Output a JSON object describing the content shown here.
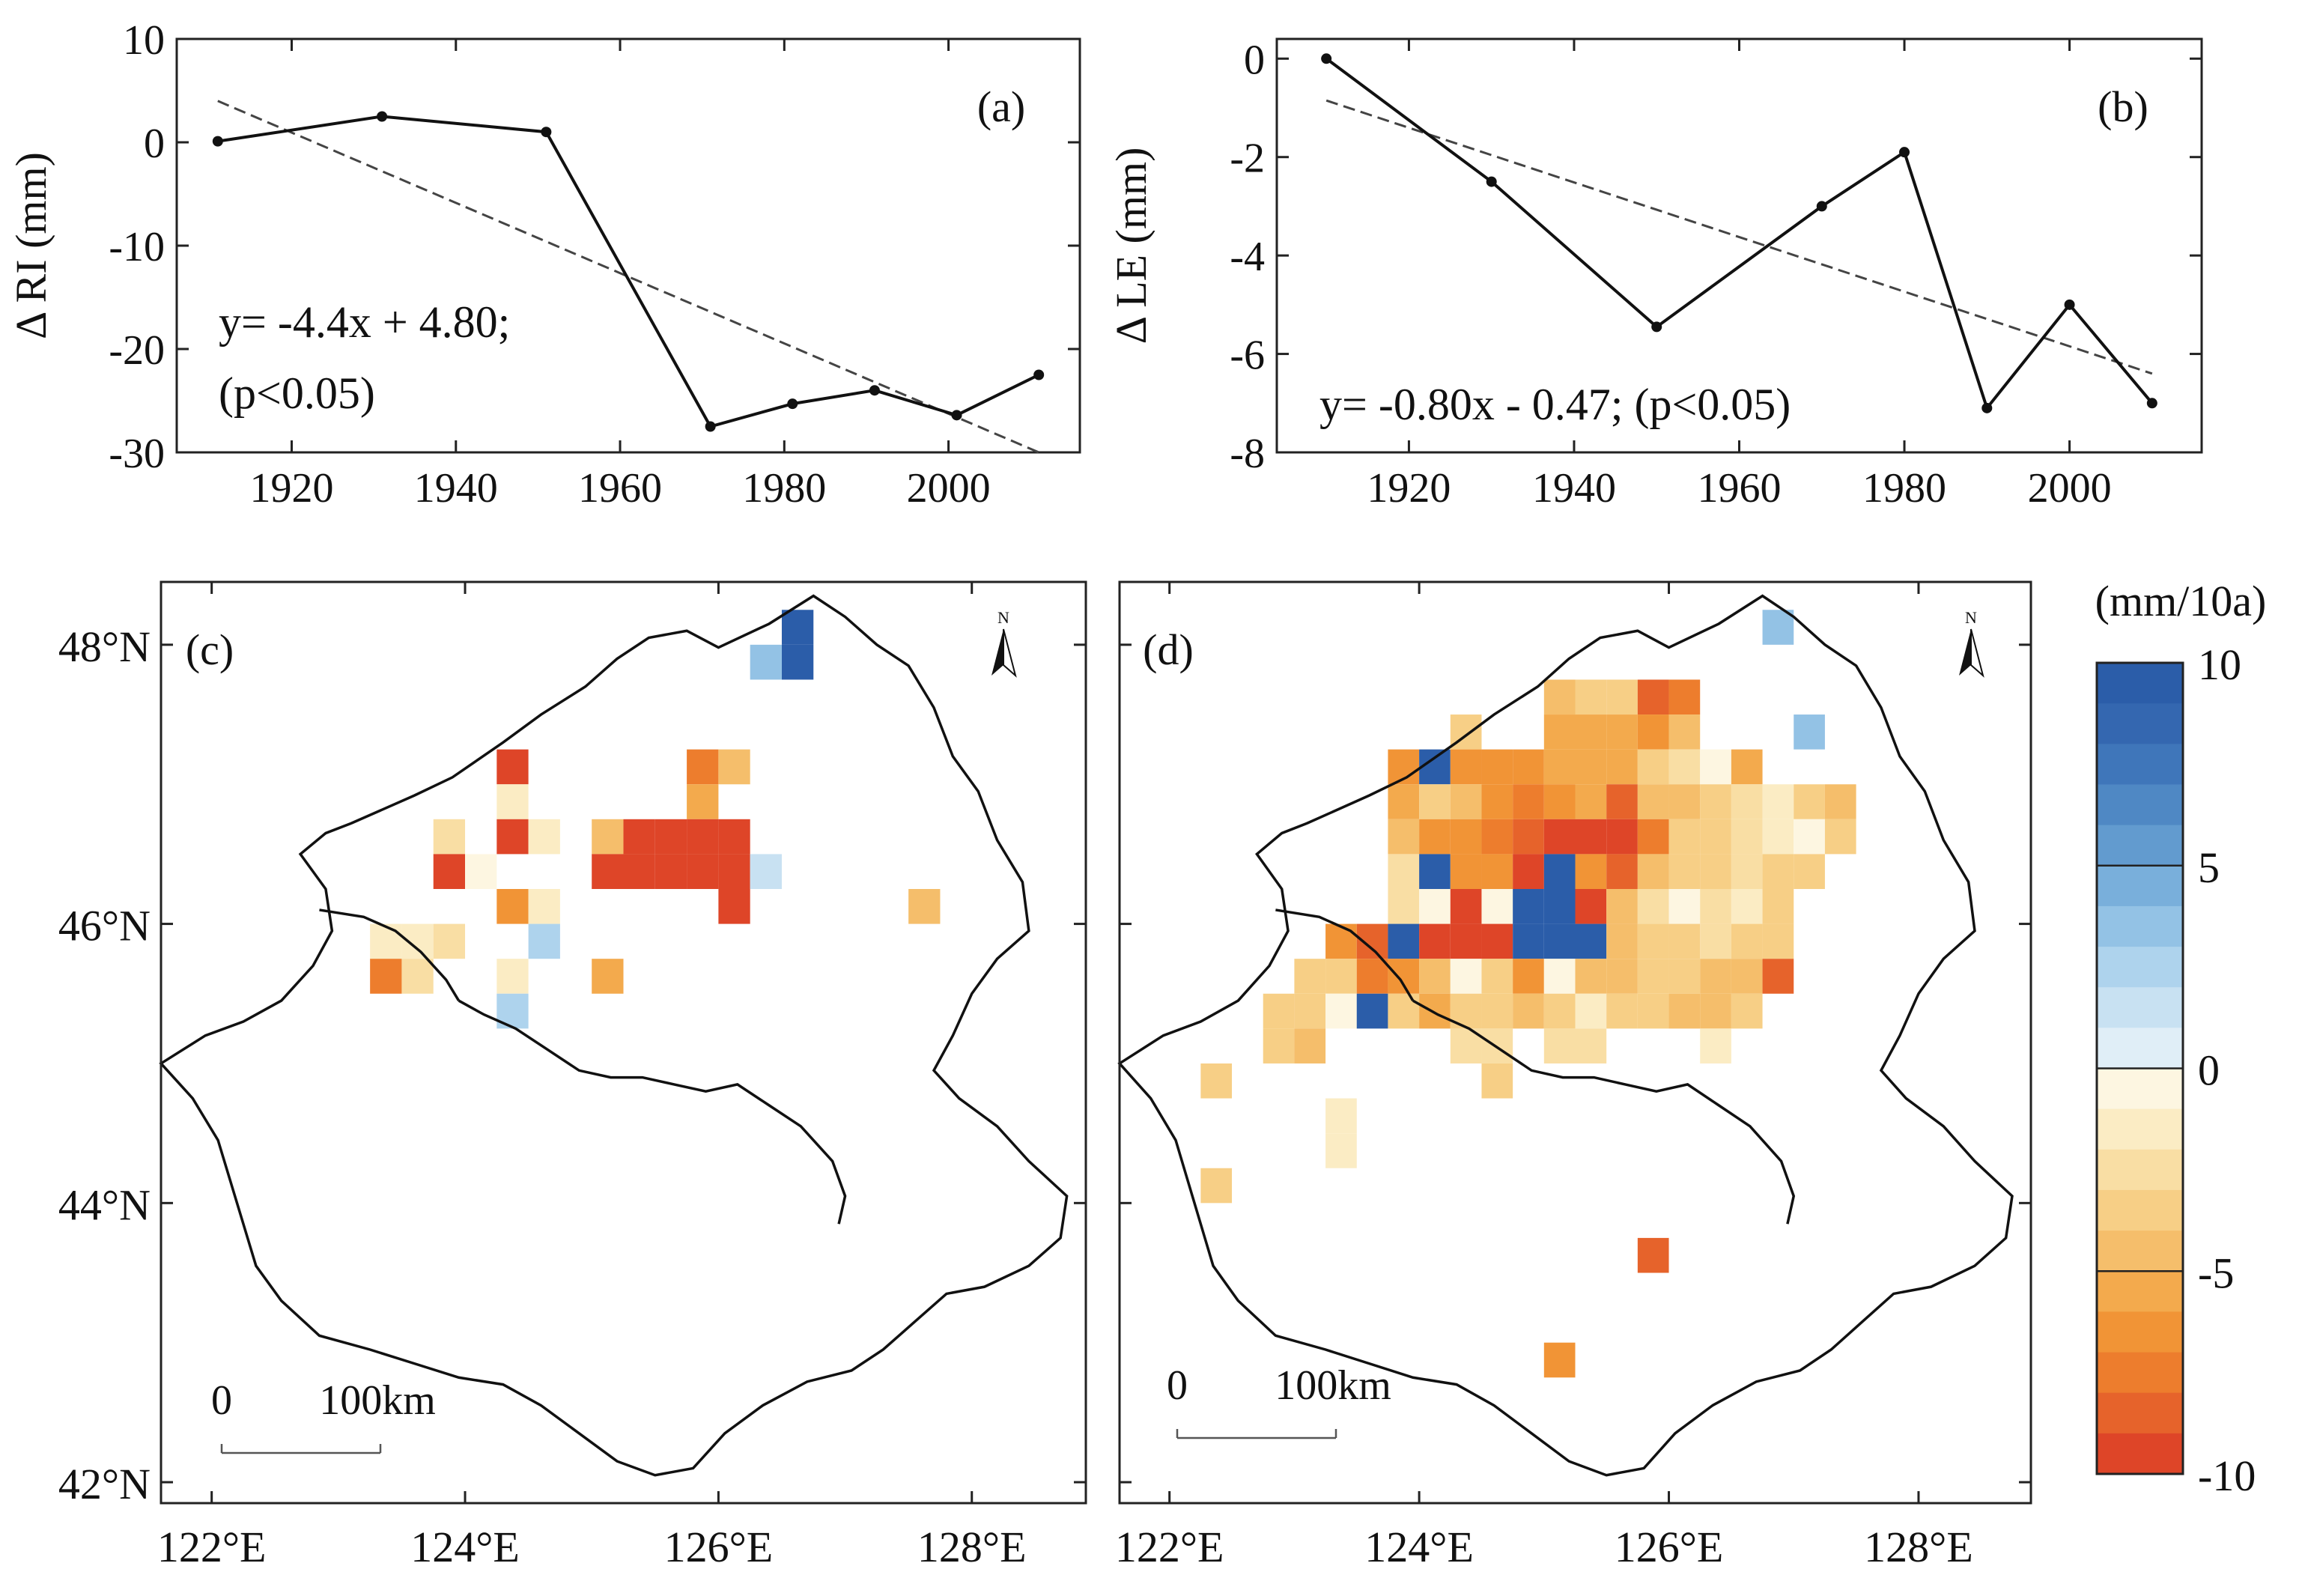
{
  "chart_data": [
    {
      "panel": "(a)",
      "type": "line",
      "ylabel": "Δ RI (mm)",
      "xticks": [
        1920,
        1940,
        1960,
        1980,
        2000
      ],
      "yticks": [
        10,
        0,
        -10,
        -20,
        -30
      ],
      "xlim": [
        1906,
        2016
      ],
      "ylim": [
        -30,
        10
      ],
      "series": [
        {
          "x": [
            1911,
            1931,
            1951,
            1971,
            1981,
            1991,
            2001,
            2011
          ],
          "y": [
            0.1,
            2.5,
            1.0,
            -27.5,
            -25.3,
            -24.0,
            -26.4,
            -22.5
          ]
        }
      ],
      "trend": {
        "x": [
          1911,
          2011
        ],
        "y": [
          4.0,
          -30.0
        ]
      },
      "annotation": [
        "y= -4.4x + 4.80;",
        "(p<0.05)"
      ]
    },
    {
      "panel": "(b)",
      "type": "line",
      "ylabel": "Δ LE (mm)",
      "xticks": [
        1920,
        1940,
        1960,
        1980,
        2000
      ],
      "yticks": [
        0,
        -2,
        -4,
        -6,
        -8
      ],
      "xlim": [
        1904,
        2016
      ],
      "ylim": [
        -8,
        0.4
      ],
      "series": [
        {
          "x": [
            1910,
            1930,
            1950,
            1970,
            1980,
            1990,
            2000,
            2010
          ],
          "y": [
            0,
            -2.5,
            -5.45,
            -3.0,
            -1.9,
            -7.1,
            -5.0,
            -7.0
          ]
        }
      ],
      "trend": {
        "x": [
          1910,
          2010
        ],
        "y": [
          -0.85,
          -6.4
        ]
      },
      "annotation": [
        "y= -0.80x - 0.47; (p<0.05)"
      ]
    },
    {
      "panel": "(c)",
      "type": "heatmap",
      "xticks": [
        "122°E",
        "124°E",
        "126°E",
        "128°E"
      ],
      "yticks": [
        "48°N",
        "46°N",
        "44°N",
        "42°N"
      ],
      "lon_range": [
        121.6,
        128.9
      ],
      "lat_range": [
        41.85,
        48.45
      ],
      "cell_deg": 0.25,
      "cells": [
        [
          126.625,
          48.125,
          9
        ],
        [
          126.625,
          47.875,
          10
        ],
        [
          126.375,
          47.875,
          3
        ],
        [
          124.375,
          47.125,
          -10
        ],
        [
          125.875,
          47.125,
          -7
        ],
        [
          126.125,
          47.125,
          -4
        ],
        [
          124.375,
          46.875,
          -1
        ],
        [
          125.875,
          46.875,
          -5
        ],
        [
          123.875,
          46.625,
          -2
        ],
        [
          124.375,
          46.625,
          -9
        ],
        [
          124.625,
          46.625,
          -1
        ],
        [
          125.125,
          46.625,
          -4.5
        ],
        [
          125.375,
          46.625,
          -9.5
        ],
        [
          125.625,
          46.625,
          -10
        ],
        [
          125.875,
          46.625,
          -10
        ],
        [
          126.125,
          46.625,
          -10
        ],
        [
          123.875,
          46.375,
          -10
        ],
        [
          124.125,
          46.375,
          -0.5
        ],
        [
          125.125,
          46.375,
          -10
        ],
        [
          125.375,
          46.375,
          -10
        ],
        [
          125.625,
          46.375,
          -10
        ],
        [
          125.875,
          46.375,
          -10
        ],
        [
          126.125,
          46.375,
          -10
        ],
        [
          126.375,
          46.375,
          1
        ],
        [
          124.375,
          46.125,
          -6
        ],
        [
          124.625,
          46.125,
          -1
        ],
        [
          126.125,
          46.125,
          -9
        ],
        [
          127.625,
          46.125,
          -4.5
        ],
        [
          123.375,
          45.875,
          -1.5
        ],
        [
          123.625,
          45.875,
          -1.5
        ],
        [
          123.875,
          45.875,
          -2.5
        ],
        [
          124.625,
          45.875,
          2
        ],
        [
          123.375,
          45.625,
          -7
        ],
        [
          123.625,
          45.625,
          -2
        ],
        [
          124.375,
          45.625,
          -1
        ],
        [
          125.125,
          45.625,
          -5
        ],
        [
          124.375,
          45.375,
          2
        ]
      ],
      "scalebar": [
        "0",
        "100km"
      ]
    },
    {
      "panel": "(d)",
      "type": "heatmap",
      "xticks": [
        "122°E",
        "124°E",
        "126°E",
        "128°E"
      ],
      "lon_range": [
        121.6,
        128.9
      ],
      "lat_range": [
        41.85,
        48.45
      ],
      "cell_deg": 0.25,
      "cells": [
        [
          126.875,
          48.125,
          3
        ],
        [
          125.125,
          47.625,
          -4
        ],
        [
          125.375,
          47.625,
          -3
        ],
        [
          125.625,
          47.625,
          -3
        ],
        [
          125.875,
          47.625,
          -8
        ],
        [
          126.125,
          47.625,
          -7
        ],
        [
          124.375,
          47.375,
          -3
        ],
        [
          125.125,
          47.375,
          -5
        ],
        [
          125.375,
          47.375,
          -5
        ],
        [
          125.625,
          47.375,
          -5
        ],
        [
          125.875,
          47.375,
          -6
        ],
        [
          126.125,
          47.375,
          -4
        ],
        [
          127.125,
          47.375,
          3
        ],
        [
          123.875,
          47.125,
          -6
        ],
        [
          124.125,
          47.125,
          10
        ],
        [
          124.375,
          47.125,
          -6
        ],
        [
          124.625,
          47.125,
          -6
        ],
        [
          124.875,
          47.125,
          -6
        ],
        [
          125.125,
          47.125,
          -5
        ],
        [
          125.375,
          47.125,
          -5
        ],
        [
          125.625,
          47.125,
          -5
        ],
        [
          125.875,
          47.125,
          -3
        ],
        [
          126.125,
          47.125,
          -2
        ],
        [
          126.375,
          47.125,
          -0.5
        ],
        [
          126.625,
          47.125,
          -5
        ],
        [
          123.875,
          46.875,
          -5
        ],
        [
          124.125,
          46.875,
          -3
        ],
        [
          124.375,
          46.875,
          -4
        ],
        [
          124.625,
          46.875,
          -6
        ],
        [
          124.875,
          46.875,
          -7
        ],
        [
          125.125,
          46.875,
          -6
        ],
        [
          125.375,
          46.875,
          -5
        ],
        [
          125.625,
          46.875,
          -8
        ],
        [
          125.875,
          46.875,
          -4
        ],
        [
          126.125,
          46.875,
          -4
        ],
        [
          126.375,
          46.875,
          -3
        ],
        [
          126.625,
          46.875,
          -2
        ],
        [
          126.875,
          46.875,
          -1
        ],
        [
          127.125,
          46.875,
          -3
        ],
        [
          127.375,
          46.875,
          -4
        ],
        [
          123.875,
          46.625,
          -4
        ],
        [
          124.125,
          46.625,
          -6
        ],
        [
          124.375,
          46.625,
          -6
        ],
        [
          124.625,
          46.625,
          -7
        ],
        [
          124.875,
          46.625,
          -8
        ],
        [
          125.125,
          46.625,
          -9
        ],
        [
          125.375,
          46.625,
          -9
        ],
        [
          125.625,
          46.625,
          -10
        ],
        [
          125.875,
          46.625,
          -7
        ],
        [
          126.125,
          46.625,
          -3
        ],
        [
          126.375,
          46.625,
          -3
        ],
        [
          126.625,
          46.625,
          -2
        ],
        [
          126.875,
          46.625,
          -1
        ],
        [
          127.125,
          46.625,
          -0.5
        ],
        [
          127.375,
          46.625,
          -3
        ],
        [
          123.875,
          46.375,
          -2
        ],
        [
          124.125,
          46.375,
          10
        ],
        [
          124.375,
          46.375,
          -6
        ],
        [
          124.625,
          46.375,
          -6
        ],
        [
          124.875,
          46.375,
          -10
        ],
        [
          125.125,
          46.375,
          10
        ],
        [
          125.375,
          46.375,
          -6
        ],
        [
          125.625,
          46.375,
          -8
        ],
        [
          125.875,
          46.375,
          -4
        ],
        [
          126.125,
          46.375,
          -3
        ],
        [
          126.375,
          46.375,
          -3
        ],
        [
          126.625,
          46.375,
          -2
        ],
        [
          126.875,
          46.375,
          -3
        ],
        [
          127.125,
          46.375,
          -3
        ],
        [
          123.875,
          46.125,
          -2
        ],
        [
          124.125,
          46.125,
          -0.5
        ],
        [
          124.375,
          46.125,
          -10
        ],
        [
          124.625,
          46.125,
          -0.3
        ],
        [
          124.875,
          46.125,
          10
        ],
        [
          125.125,
          46.125,
          10
        ],
        [
          125.375,
          46.125,
          -10
        ],
        [
          125.625,
          46.125,
          -4
        ],
        [
          125.875,
          46.125,
          -2
        ],
        [
          126.125,
          46.125,
          -0.5
        ],
        [
          126.375,
          46.125,
          -2
        ],
        [
          126.625,
          46.125,
          -1
        ],
        [
          126.875,
          46.125,
          -3
        ],
        [
          123.375,
          45.875,
          -6
        ],
        [
          123.625,
          45.875,
          -8
        ],
        [
          123.875,
          45.875,
          10
        ],
        [
          124.125,
          45.875,
          -10
        ],
        [
          124.375,
          45.875,
          -10
        ],
        [
          124.625,
          45.875,
          -10
        ],
        [
          124.875,
          45.875,
          10
        ],
        [
          125.125,
          45.875,
          10
        ],
        [
          125.375,
          45.875,
          10
        ],
        [
          125.625,
          45.875,
          -4
        ],
        [
          125.875,
          45.875,
          -3
        ],
        [
          126.125,
          45.875,
          -3
        ],
        [
          126.375,
          45.875,
          -2
        ],
        [
          126.625,
          45.875,
          -3
        ],
        [
          126.875,
          45.875,
          -3
        ],
        [
          123.125,
          45.625,
          -3
        ],
        [
          123.375,
          45.625,
          -3
        ],
        [
          123.625,
          45.625,
          -7
        ],
        [
          123.875,
          45.625,
          -6
        ],
        [
          124.125,
          45.625,
          -4
        ],
        [
          124.375,
          45.625,
          -0.3
        ],
        [
          124.625,
          45.625,
          -3
        ],
        [
          124.875,
          45.625,
          -6
        ],
        [
          125.125,
          45.625,
          -0.3
        ],
        [
          125.375,
          45.625,
          -4
        ],
        [
          125.625,
          45.625,
          -4
        ],
        [
          125.875,
          45.625,
          -3
        ],
        [
          126.125,
          45.625,
          -3
        ],
        [
          126.375,
          45.625,
          -4
        ],
        [
          126.625,
          45.625,
          -4
        ],
        [
          126.875,
          45.625,
          -8
        ],
        [
          122.875,
          45.375,
          -3
        ],
        [
          123.125,
          45.375,
          -3
        ],
        [
          123.375,
          45.375,
          -0.3
        ],
        [
          123.625,
          45.375,
          10
        ],
        [
          123.875,
          45.375,
          -3
        ],
        [
          124.125,
          45.375,
          -5
        ],
        [
          124.375,
          45.375,
          -3
        ],
        [
          124.625,
          45.375,
          -3
        ],
        [
          124.875,
          45.375,
          -4
        ],
        [
          125.125,
          45.375,
          -3
        ],
        [
          125.375,
          45.375,
          -1
        ],
        [
          125.625,
          45.375,
          -3
        ],
        [
          125.875,
          45.375,
          -3
        ],
        [
          126.125,
          45.375,
          -4
        ],
        [
          126.375,
          45.375,
          -4
        ],
        [
          126.625,
          45.375,
          -3
        ],
        [
          122.875,
          45.125,
          -3
        ],
        [
          123.125,
          45.125,
          -4
        ],
        [
          124.375,
          45.125,
          -2
        ],
        [
          124.625,
          45.125,
          -2
        ],
        [
          125.125,
          45.125,
          -2
        ],
        [
          125.375,
          45.125,
          -2
        ],
        [
          126.375,
          45.125,
          -1.5
        ],
        [
          122.375,
          44.875,
          -3
        ],
        [
          124.625,
          44.875,
          -3
        ],
        [
          123.375,
          44.625,
          -1.5
        ],
        [
          123.375,
          44.375,
          -1.5
        ],
        [
          122.375,
          44.125,
          -3
        ],
        [
          125.875,
          43.625,
          -8
        ],
        [
          125.125,
          42.875,
          -6
        ]
      ],
      "scalebar": [
        "0",
        "100km"
      ]
    }
  ],
  "legend": {
    "unit": "(mm/10a)",
    "ticks": [
      "10",
      "5",
      "0",
      "-5",
      "-10"
    ],
    "blue_colors": [
      "#2b5da9",
      "#3467b0",
      "#3f76ba",
      "#4f88c4",
      "#629bcf",
      "#79afdb",
      "#93c2e5",
      "#aed3ed",
      "#c8e1f2",
      "#e0eef7"
    ],
    "orange_colors": [
      "#fdf6e1",
      "#fbecc4",
      "#f9dea4",
      "#f7cf86",
      "#f5be6b",
      "#f3aa4d",
      "#f19436",
      "#ed7d2d",
      "#e6632b",
      "#de4528"
    ]
  },
  "north_label": "N"
}
